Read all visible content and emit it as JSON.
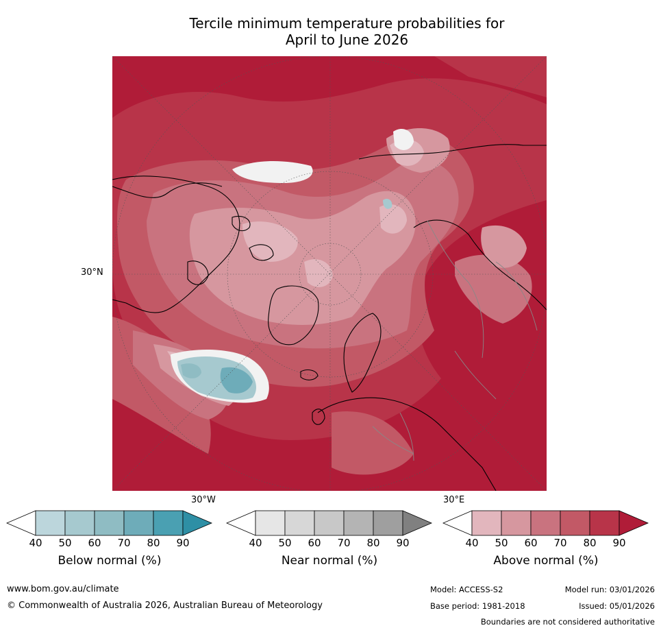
{
  "title": {
    "line1": "Tercile minimum temperature probabilities for",
    "line2": "April to June 2026"
  },
  "map": {
    "projection": "north-polar-stereographic",
    "lat_label": "30°N",
    "lon_labels": {
      "west": "30°W",
      "east": "30°E"
    },
    "dominant_category": "Above normal",
    "coastline_color": "#000000",
    "border_color": "#888888"
  },
  "colorbars": [
    {
      "name": "Below normal (%)",
      "ticks": [
        "40",
        "50",
        "60",
        "70",
        "80",
        "90"
      ],
      "colors": [
        "#bcd6dc",
        "#a6c9cf",
        "#8fbcc3",
        "#6eacb9",
        "#4aa0b2",
        "#2e8fa5"
      ]
    },
    {
      "name": "Near normal (%)",
      "ticks": [
        "40",
        "50",
        "60",
        "70",
        "80",
        "90"
      ],
      "colors": [
        "#e6e6e6",
        "#d7d7d7",
        "#c8c8c8",
        "#b4b4b4",
        "#9f9f9f",
        "#808080"
      ]
    },
    {
      "name": "Above normal (%)",
      "ticks": [
        "40",
        "50",
        "60",
        "70",
        "80",
        "90"
      ],
      "colors": [
        "#e2b6bd",
        "#d6979f",
        "#c9737f",
        "#c25966",
        "#b83449",
        "#b01c38"
      ]
    }
  ],
  "footer": {
    "url": "www.bom.gov.au/climate",
    "copyright": "© Commonwealth of Australia 2026, Australian Bureau of Meteorology",
    "model": "Model: ACCESS-S2",
    "model_run": "Model run: 03/01/2026",
    "base_period": "Base period: 1981-2018",
    "issued": "Issued: 05/01/2026",
    "disclaimer": "Boundaries are not considered authoritative"
  }
}
